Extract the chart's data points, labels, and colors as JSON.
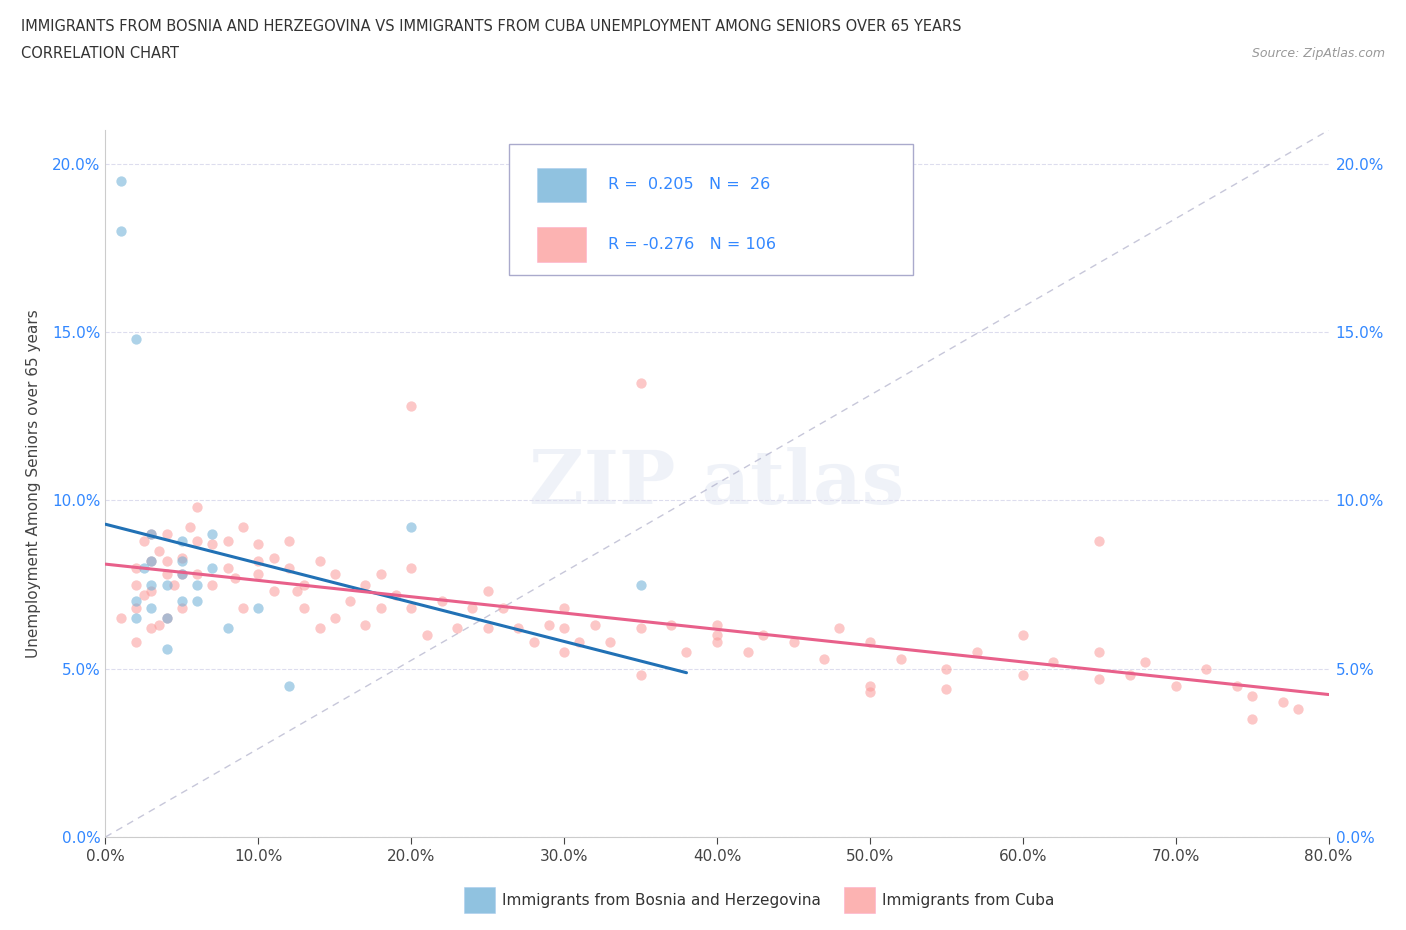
{
  "title_line1": "IMMIGRANTS FROM BOSNIA AND HERZEGOVINA VS IMMIGRANTS FROM CUBA UNEMPLOYMENT AMONG SENIORS OVER 65 YEARS",
  "title_line2": "CORRELATION CHART",
  "source": "Source: ZipAtlas.com",
  "ylabel": "Unemployment Among Seniors over 65 years",
  "xlim": [
    0.0,
    0.8
  ],
  "ylim": [
    0.0,
    0.21
  ],
  "xticks": [
    0.0,
    0.1,
    0.2,
    0.3,
    0.4,
    0.5,
    0.6,
    0.7,
    0.8
  ],
  "xticklabels": [
    "0.0%",
    "10.0%",
    "20.0%",
    "30.0%",
    "40.0%",
    "50.0%",
    "60.0%",
    "70.0%",
    "80.0%"
  ],
  "yticks": [
    0.0,
    0.05,
    0.1,
    0.15,
    0.2
  ],
  "yticklabels": [
    "0.0%",
    "5.0%",
    "10.0%",
    "15.0%",
    "20.0%"
  ],
  "bosnia_color": "#6baed6",
  "cuba_color": "#fb9a99",
  "legend_label_bosnia": "Immigrants from Bosnia and Herzegovina",
  "legend_label_cuba": "Immigrants from Cuba",
  "R_bosnia": 0.205,
  "N_bosnia": 26,
  "R_cuba": -0.276,
  "N_cuba": 106,
  "bosnia_x": [
    0.01,
    0.01,
    0.02,
    0.02,
    0.02,
    0.025,
    0.03,
    0.03,
    0.03,
    0.03,
    0.04,
    0.04,
    0.04,
    0.05,
    0.05,
    0.05,
    0.05,
    0.06,
    0.06,
    0.07,
    0.07,
    0.08,
    0.1,
    0.12,
    0.2,
    0.35
  ],
  "bosnia_y": [
    0.18,
    0.195,
    0.148,
    0.07,
    0.065,
    0.08,
    0.075,
    0.068,
    0.09,
    0.082,
    0.075,
    0.065,
    0.056,
    0.078,
    0.07,
    0.082,
    0.088,
    0.07,
    0.075,
    0.09,
    0.08,
    0.062,
    0.068,
    0.045,
    0.092,
    0.075
  ],
  "cuba_x": [
    0.01,
    0.02,
    0.02,
    0.02,
    0.02,
    0.025,
    0.025,
    0.03,
    0.03,
    0.03,
    0.03,
    0.035,
    0.035,
    0.04,
    0.04,
    0.04,
    0.04,
    0.045,
    0.05,
    0.05,
    0.05,
    0.055,
    0.06,
    0.06,
    0.06,
    0.07,
    0.07,
    0.08,
    0.08,
    0.085,
    0.09,
    0.09,
    0.1,
    0.1,
    0.1,
    0.11,
    0.11,
    0.12,
    0.12,
    0.125,
    0.13,
    0.13,
    0.14,
    0.14,
    0.15,
    0.15,
    0.16,
    0.17,
    0.17,
    0.18,
    0.18,
    0.19,
    0.2,
    0.2,
    0.21,
    0.22,
    0.23,
    0.24,
    0.25,
    0.25,
    0.26,
    0.27,
    0.28,
    0.29,
    0.3,
    0.3,
    0.31,
    0.32,
    0.33,
    0.35,
    0.35,
    0.37,
    0.38,
    0.4,
    0.4,
    0.42,
    0.43,
    0.45,
    0.47,
    0.48,
    0.5,
    0.5,
    0.52,
    0.55,
    0.57,
    0.6,
    0.6,
    0.62,
    0.65,
    0.65,
    0.67,
    0.68,
    0.7,
    0.72,
    0.74,
    0.75,
    0.77,
    0.78,
    0.35,
    0.5,
    0.3,
    0.4,
    0.55,
    0.65,
    0.75,
    0.2
  ],
  "cuba_y": [
    0.065,
    0.08,
    0.075,
    0.068,
    0.058,
    0.088,
    0.072,
    0.09,
    0.082,
    0.073,
    0.062,
    0.085,
    0.063,
    0.09,
    0.082,
    0.078,
    0.065,
    0.075,
    0.083,
    0.078,
    0.068,
    0.092,
    0.098,
    0.088,
    0.078,
    0.087,
    0.075,
    0.088,
    0.08,
    0.077,
    0.092,
    0.068,
    0.087,
    0.082,
    0.078,
    0.083,
    0.073,
    0.08,
    0.088,
    0.073,
    0.075,
    0.068,
    0.082,
    0.062,
    0.078,
    0.065,
    0.07,
    0.075,
    0.063,
    0.078,
    0.068,
    0.072,
    0.068,
    0.08,
    0.06,
    0.07,
    0.062,
    0.068,
    0.073,
    0.062,
    0.068,
    0.062,
    0.058,
    0.063,
    0.068,
    0.062,
    0.058,
    0.063,
    0.058,
    0.062,
    0.135,
    0.063,
    0.055,
    0.058,
    0.063,
    0.055,
    0.06,
    0.058,
    0.053,
    0.062,
    0.058,
    0.045,
    0.053,
    0.05,
    0.055,
    0.048,
    0.06,
    0.052,
    0.047,
    0.055,
    0.048,
    0.052,
    0.045,
    0.05,
    0.045,
    0.042,
    0.04,
    0.038,
    0.048,
    0.043,
    0.055,
    0.06,
    0.044,
    0.088,
    0.035,
    0.128
  ]
}
